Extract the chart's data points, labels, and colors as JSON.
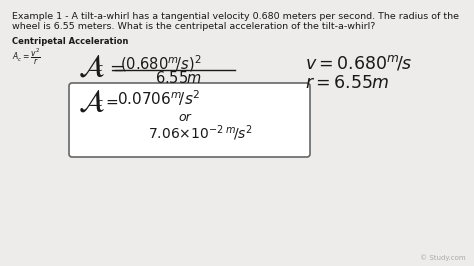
{
  "bg_color": "#edecea",
  "text_color": "#1a1a1a",
  "box_color": "#ffffff",
  "box_edge": "#666666",
  "watermark_color": "#aaaaaa",
  "title_line1": "Example 1 - A tilt-a-whirl has a tangential velocity 0.680 meters per second. The radius of the",
  "title_line2": "wheel is 6.55 meters. What is the centripetal acceleration of the tilt-a-whirl?",
  "label_centripetal": "Centripetal Acceleration",
  "watermark": "© Study.com",
  "fig_width": 4.74,
  "fig_height": 2.66,
  "dpi": 100
}
